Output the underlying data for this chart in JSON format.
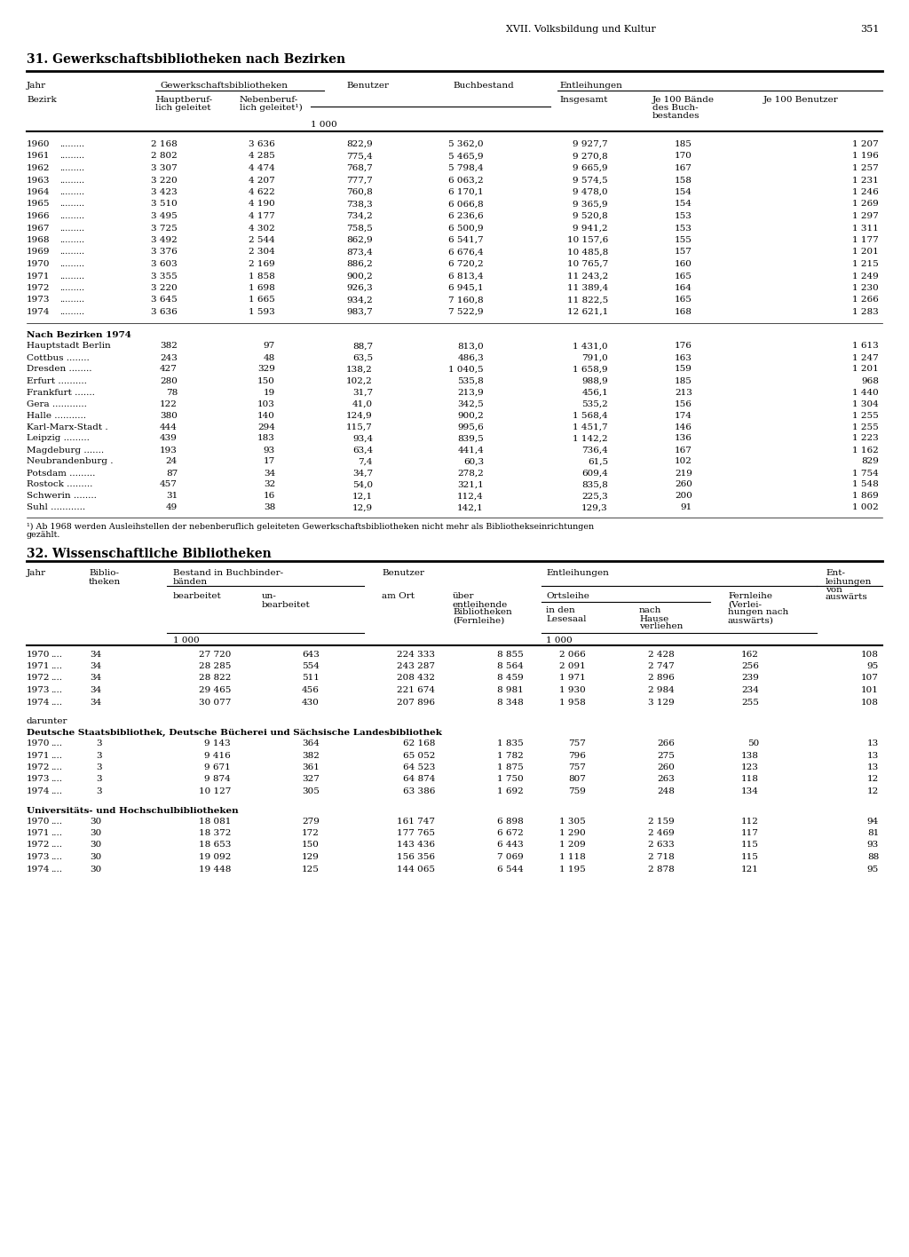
{
  "page_header": "XVII. Volksbildung und Kultur",
  "page_number": "351",
  "section1_title": "31. Gewerkschaftsbibliotheken nach Bezirken",
  "section2_title": "32. Wissenschaftliche Bibliotheken",
  "bg_color": "#ffffff",
  "text_color": "#000000"
}
